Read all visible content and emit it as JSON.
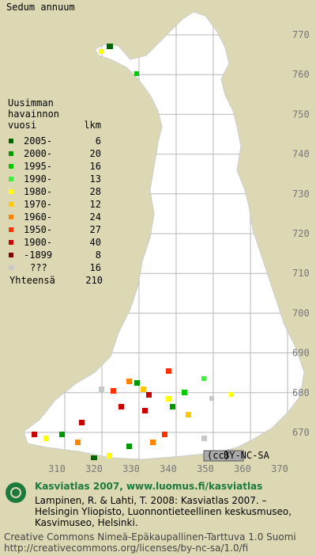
{
  "title": "Sedum annuum",
  "legend": {
    "heading": [
      "Uusimman",
      "havainnon",
      "vuosi"
    ],
    "count_header": "lkm",
    "rows": [
      {
        "label": "2005-",
        "count": 6,
        "color": "#006400"
      },
      {
        "label": "2000-",
        "count": 20,
        "color": "#009a00"
      },
      {
        "label": "1995-",
        "count": 16,
        "color": "#00c800"
      },
      {
        "label": "1990-",
        "count": 13,
        "color": "#3cf03c"
      },
      {
        "label": "1980-",
        "count": 28,
        "color": "#ffff00"
      },
      {
        "label": "1970-",
        "count": 12,
        "color": "#ffc800"
      },
      {
        "label": "1960-",
        "count": 24,
        "color": "#ff8200"
      },
      {
        "label": "1950-",
        "count": 27,
        "color": "#ff3200"
      },
      {
        "label": "1900-",
        "count": 40,
        "color": "#c80000"
      },
      {
        "label": "-1899",
        "count": 8,
        "color": "#820000"
      },
      {
        "label": "???",
        "count": 16,
        "color": "#c8c8c8"
      }
    ],
    "total_label": "Yhteensä",
    "total": 210
  },
  "grid": {
    "northing": [
      770,
      760,
      750,
      740,
      730,
      720,
      710,
      700,
      690,
      680,
      670
    ],
    "easting": [
      310,
      320,
      330,
      340,
      350,
      360,
      370
    ]
  },
  "license_badge": "BY-NC-SA",
  "footer": {
    "title": "Kasviatlas 2007, www.luomus.fi/kasviatlas",
    "citation": [
      "Lampinen, R. & Lahti, T. 2008: Kasviatlas 2007. –",
      "Helsingin Yliopisto, Luonnontieteellinen keskusmuseo,",
      "Kasvimuseo, Helsinki."
    ],
    "license": [
      "Creative Commons Nimeä-Epäkaupallinen-Tarttuva 1.0 Suomi",
      "http://creativecommons.org/licenses/by-nc-sa/1.0/fi"
    ]
  }
}
